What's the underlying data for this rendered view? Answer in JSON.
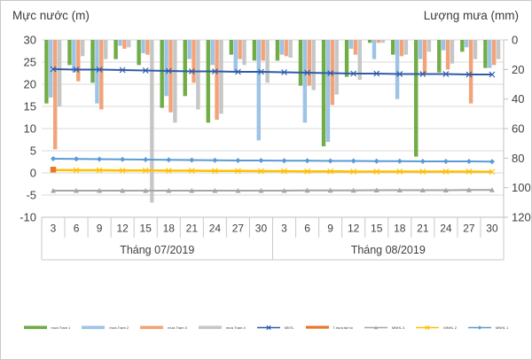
{
  "titles": {
    "left": "Mực nước (m)",
    "right": "Lượng mưa (mm)"
  },
  "chart_data": {
    "type": "bar+line combo (rainfall bars on inverted secondary axis, water-level lines on primary axis)",
    "left_axis": {
      "label": "Mực nước (m)",
      "ticks": [
        30,
        25,
        20,
        15,
        10,
        5,
        0,
        -5,
        -10
      ],
      "range": [
        -10,
        30
      ]
    },
    "right_axis": {
      "label": "Lượng mưa (mm)",
      "ticks": [
        0,
        20,
        40,
        60,
        80,
        100,
        120
      ],
      "range": [
        0,
        120
      ],
      "inverted": true
    },
    "day_ticks": [
      "3",
      "6",
      "9",
      "12",
      "15",
      "18",
      "21",
      "24",
      "27",
      "30"
    ],
    "month_groups": [
      {
        "label": "Tháng 07/2019"
      },
      {
        "label": "Tháng 08/2019"
      }
    ],
    "grid": "horizontal gridlines every 5 m (20 mm)",
    "legend_position": "bottom",
    "bar_series": [
      {
        "name": "mưa Trạm 1",
        "color": "#70AD47",
        "values_mm": [
          43,
          17,
          29,
          13,
          17,
          46,
          38,
          56,
          10,
          14,
          14,
          31,
          72,
          25,
          2,
          10,
          79,
          22,
          8,
          19
        ]
      },
      {
        "name": "mưa Trạm 2",
        "color": "#9DC3E6",
        "values_mm": [
          39,
          22,
          43,
          4,
          9,
          38,
          13,
          17,
          21,
          68,
          10,
          56,
          69,
          6,
          13,
          40,
          13,
          7,
          5,
          19
        ]
      },
      {
        "name": "mưa Trạm 3",
        "color": "#F2A379",
        "values_mm": [
          74,
          28,
          47,
          6,
          10,
          49,
          29,
          54,
          13,
          14,
          11,
          31,
          44,
          10,
          2,
          11,
          23,
          20,
          43,
          17
        ]
      },
      {
        "name": "mưa Trạm 4",
        "color": "#C6C6C6",
        "values_mm": [
          45,
          11,
          13,
          5,
          110,
          56,
          47,
          50,
          17,
          29,
          12,
          34,
          37,
          27,
          2,
          10,
          8,
          16,
          13,
          13
        ]
      }
    ],
    "line_series": [
      {
        "name": "MNTL",
        "color": "#2F5CA8",
        "marker": "x",
        "width": 2,
        "values_m": [
          23.4,
          23.3,
          23.3,
          23.2,
          23.1,
          23.0,
          22.9,
          22.9,
          22.8,
          22.8,
          22.7,
          22.6,
          22.5,
          22.4,
          22.4,
          22.3,
          22.3,
          22.3,
          22.2,
          22.2
        ]
      },
      {
        "name": "MNHL 1",
        "color": "#5B9BD5",
        "marker": "diamond",
        "width": 2,
        "values_m": [
          3.2,
          3.15,
          3.1,
          3.05,
          3.0,
          2.95,
          2.9,
          2.85,
          2.8,
          2.8,
          2.75,
          2.75,
          2.7,
          2.7,
          2.65,
          2.65,
          2.6,
          2.6,
          2.6,
          2.55
        ]
      },
      {
        "name": "MNHL 2",
        "color": "#FFC000",
        "marker": "x",
        "width": 2.6,
        "values_m": [
          0.65,
          0.6,
          0.6,
          0.55,
          0.55,
          0.5,
          0.5,
          0.45,
          0.45,
          0.4,
          0.4,
          0.35,
          0.35,
          0.3,
          0.3,
          0.3,
          0.3,
          0.3,
          0.3,
          0.25
        ]
      },
      {
        "name": "MNHL 3",
        "color": "#A6A6A6",
        "marker": "triangle",
        "width": 2,
        "values_m": [
          -4,
          -4,
          -4,
          -4,
          -4,
          -4,
          -4,
          -4,
          -4,
          -4,
          -4,
          -3.95,
          -3.95,
          -3.95,
          -3.9,
          -3.9,
          -3.9,
          -3.9,
          -3.85,
          -3.85
        ]
      }
    ],
    "point_series": [
      {
        "name": "T.mưa tại hồ",
        "color": "#E8762C",
        "marker": "square",
        "index": 0,
        "value_m": 0.75
      }
    ],
    "legend": [
      {
        "label": "mưa Trạm 1",
        "color": "#70AD47",
        "kind": "bar"
      },
      {
        "label": "mưa Trạm 2",
        "color": "#9DC3E6",
        "kind": "bar"
      },
      {
        "label": "mưa Trạm 3",
        "color": "#F2A379",
        "kind": "bar"
      },
      {
        "label": "mưa Trạm 4",
        "color": "#C6C6C6",
        "kind": "bar"
      },
      {
        "label": "MNTL",
        "color": "#2F5CA8",
        "kind": "line",
        "marker": "x"
      },
      {
        "label": "T.mưa tại hồ",
        "color": "#E8762C",
        "kind": "thick"
      },
      {
        "label": "MNHL 3",
        "color": "#A6A6A6",
        "kind": "line",
        "marker": "triangle"
      },
      {
        "label": "MNHL 2",
        "color": "#FFC000",
        "kind": "line",
        "marker": "x"
      },
      {
        "label": "MNHL 1",
        "color": "#5B9BD5",
        "kind": "line",
        "marker": "diamond"
      }
    ]
  }
}
